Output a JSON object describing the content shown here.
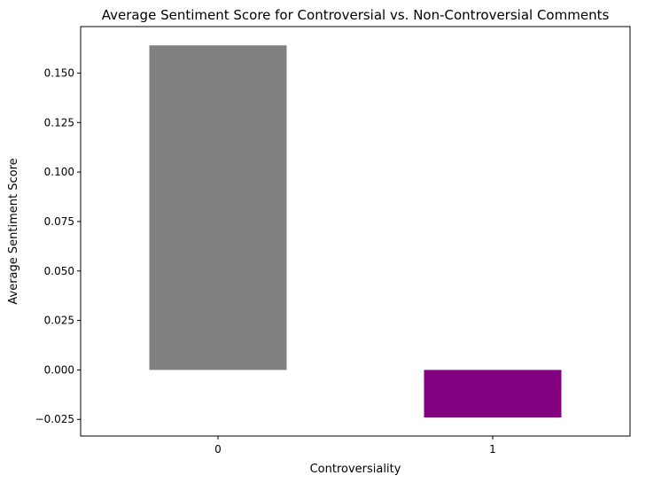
{
  "chart_data": {
    "type": "bar",
    "title": "Average Sentiment Score for Controversial vs. Non-Controversial Comments",
    "xlabel": "Controversiality",
    "ylabel": "Average Sentiment Score",
    "categories": [
      "0",
      "1"
    ],
    "values": [
      0.164,
      -0.024
    ],
    "colors": [
      "#808080",
      "#800080"
    ],
    "ylim": [
      -0.0334,
      0.1735
    ],
    "yticks": [
      -0.025,
      0.0,
      0.025,
      0.05,
      0.075,
      0.1,
      0.125,
      0.15
    ],
    "ytick_labels": [
      "−0.025",
      "0.000",
      "0.025",
      "0.050",
      "0.075",
      "0.100",
      "0.125",
      "0.150"
    ],
    "grid": false,
    "legend": "none"
  }
}
